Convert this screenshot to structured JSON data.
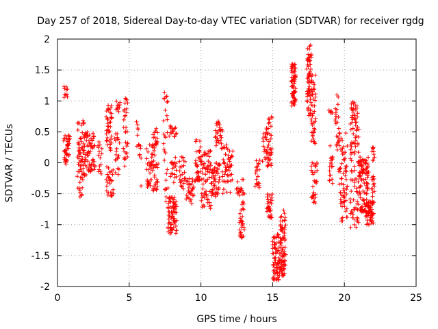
{
  "chart_data": {
    "type": "scatter",
    "title": "Day 257 of 2018, Sidereal Day-to-day VTEC variation (SDTVAR) for receiver rgdg",
    "xlabel": "GPS time / hours",
    "ylabel": "SDTVAR / TECUs",
    "xlim": [
      0,
      25
    ],
    "ylim": [
      -2,
      2
    ],
    "xticks": [
      0,
      5,
      10,
      15,
      20,
      25
    ],
    "xtick_labels": [
      "0",
      "5",
      "10",
      "15",
      "20",
      "25"
    ],
    "yticks": [
      -2,
      -1.5,
      -1,
      -0.5,
      0,
      0.5,
      1,
      1.5,
      2
    ],
    "ytick_labels": [
      "-2",
      "-1.5",
      "-1",
      "-0.5",
      "0",
      "0.5",
      "1",
      "1.5",
      "2"
    ],
    "grid": true,
    "marker": "+",
    "color": "#ff0000",
    "series": [
      {
        "name": "rgdg",
        "clusters": [
          {
            "x": [
              0.45,
              0.85
            ],
            "y": [
              -0.05,
              0.45
            ],
            "n": 40
          },
          {
            "x": [
              0.45,
              0.7
            ],
            "y": [
              1.0,
              1.25
            ],
            "n": 10
          },
          {
            "x": [
              1.4,
              1.9
            ],
            "y": [
              -0.55,
              0.75
            ],
            "n": 70
          },
          {
            "x": [
              1.9,
              2.6
            ],
            "y": [
              -0.2,
              0.5
            ],
            "n": 70
          },
          {
            "x": [
              2.8,
              3.1
            ],
            "y": [
              -0.2,
              0.4
            ],
            "n": 15
          },
          {
            "x": [
              3.4,
              3.8
            ],
            "y": [
              0.2,
              1.0
            ],
            "n": 40
          },
          {
            "x": [
              3.4,
              3.9
            ],
            "y": [
              -0.55,
              -0.05
            ],
            "n": 30
          },
          {
            "x": [
              4.0,
              4.3
            ],
            "y": [
              -0.2,
              0.5
            ],
            "n": 20
          },
          {
            "x": [
              4.1,
              4.35
            ],
            "y": [
              0.8,
              1.0
            ],
            "n": 10
          },
          {
            "x": [
              4.6,
              4.9
            ],
            "y": [
              -0.1,
              1.1
            ],
            "n": 30
          },
          {
            "x": [
              5.5,
              5.85
            ],
            "y": [
              -0.4,
              0.7
            ],
            "n": 15
          },
          {
            "x": [
              6.2,
              6.6
            ],
            "y": [
              -0.4,
              0.3
            ],
            "n": 30
          },
          {
            "x": [
              6.6,
              7.0
            ],
            "y": [
              -0.45,
              0.6
            ],
            "n": 50
          },
          {
            "x": [
              7.4,
              7.7
            ],
            "y": [
              -0.95,
              1.25
            ],
            "n": 30
          },
          {
            "x": [
              7.7,
              8.3
            ],
            "y": [
              -1.15,
              -0.55
            ],
            "n": 70
          },
          {
            "x": [
              7.8,
              8.3
            ],
            "y": [
              0.4,
              0.6
            ],
            "n": 15
          },
          {
            "x": [
              7.9,
              8.3
            ],
            "y": [
              -0.5,
              0.1
            ],
            "n": 20
          },
          {
            "x": [
              8.5,
              8.9
            ],
            "y": [
              -0.45,
              0.1
            ],
            "n": 25
          },
          {
            "x": [
              9.0,
              9.5
            ],
            "y": [
              -0.7,
              -0.25
            ],
            "n": 30
          },
          {
            "x": [
              9.6,
              10.0
            ],
            "y": [
              -0.3,
              0.45
            ],
            "n": 35
          },
          {
            "x": [
              10.0,
              10.7
            ],
            "y": [
              -0.75,
              0.2
            ],
            "n": 60
          },
          {
            "x": [
              10.7,
              11.3
            ],
            "y": [
              -0.55,
              0.0
            ],
            "n": 50
          },
          {
            "x": [
              11.0,
              11.5
            ],
            "y": [
              0.2,
              0.7
            ],
            "n": 30
          },
          {
            "x": [
              11.5,
              12.2
            ],
            "y": [
              -0.5,
              0.3
            ],
            "n": 50
          },
          {
            "x": [
              12.5,
              13.0
            ],
            "y": [
              -0.55,
              -0.25
            ],
            "n": 20
          },
          {
            "x": [
              12.7,
              13.0
            ],
            "y": [
              -1.25,
              -0.6
            ],
            "n": 30
          },
          {
            "x": [
              13.8,
              14.1
            ],
            "y": [
              -0.45,
              0.1
            ],
            "n": 20
          },
          {
            "x": [
              14.3,
              14.6
            ],
            "y": [
              0.0,
              0.5
            ],
            "n": 15
          },
          {
            "x": [
              14.55,
              14.95
            ],
            "y": [
              -0.1,
              0.75
            ],
            "n": 40
          },
          {
            "x": [
              14.6,
              14.95
            ],
            "y": [
              -0.9,
              -0.5
            ],
            "n": 30
          },
          {
            "x": [
              15.0,
              15.5
            ],
            "y": [
              -1.9,
              -1.15
            ],
            "n": 70
          },
          {
            "x": [
              15.5,
              15.9
            ],
            "y": [
              -1.85,
              -0.75
            ],
            "n": 80
          },
          {
            "x": [
              16.3,
              16.6
            ],
            "y": [
              0.9,
              1.6
            ],
            "n": 70
          },
          {
            "x": [
              17.4,
              17.7
            ],
            "y": [
              0.7,
              1.9
            ],
            "n": 70
          },
          {
            "x": [
              17.7,
              18.1
            ],
            "y": [
              -0.65,
              0.0
            ],
            "n": 30
          },
          {
            "x": [
              17.7,
              18.0
            ],
            "y": [
              0.3,
              1.45
            ],
            "n": 40
          },
          {
            "x": [
              18.95,
              19.2
            ],
            "y": [
              -0.35,
              0.3
            ],
            "n": 20
          },
          {
            "x": [
              18.95,
              19.15
            ],
            "y": [
              0.8,
              0.85
            ],
            "n": 6
          },
          {
            "x": [
              19.35,
              19.6
            ],
            "y": [
              0.2,
              1.1
            ],
            "n": 20
          },
          {
            "x": [
              19.6,
              20.2
            ],
            "y": [
              -0.95,
              0.5
            ],
            "n": 70
          },
          {
            "x": [
              20.4,
              21.0
            ],
            "y": [
              -1.05,
              1.0
            ],
            "n": 100
          },
          {
            "x": [
              21.0,
              21.7
            ],
            "y": [
              -0.8,
              0.1
            ],
            "n": 100
          },
          {
            "x": [
              21.5,
              22.0
            ],
            "y": [
              -1.0,
              -0.6
            ],
            "n": 50
          },
          {
            "x": [
              21.9,
              22.1
            ],
            "y": [
              -0.85,
              0.25
            ],
            "n": 30
          }
        ]
      }
    ]
  }
}
